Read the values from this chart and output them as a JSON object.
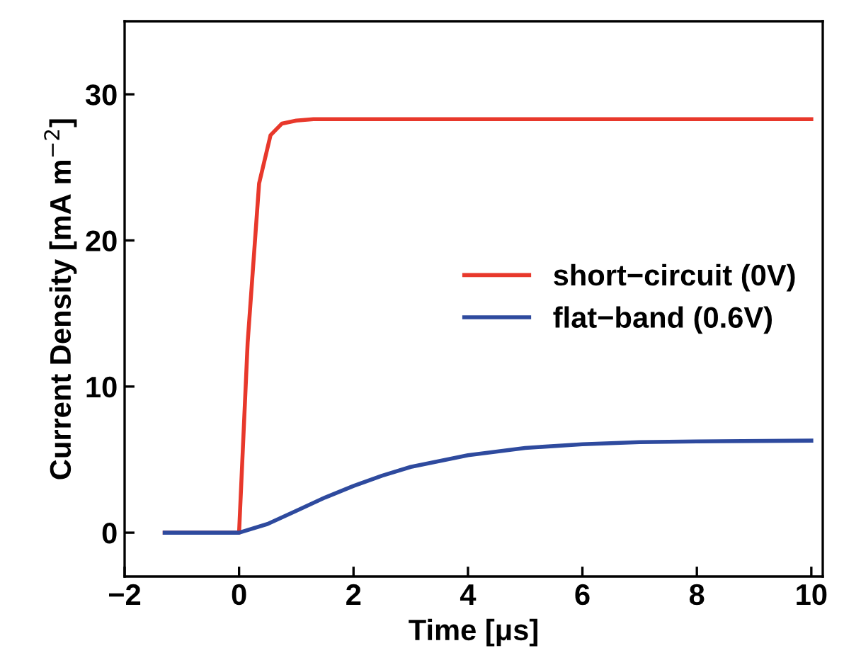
{
  "chart_data": {
    "type": "line",
    "xlabel": "Time [μs]",
    "ylabel": "Current Density [mA m$^{−2}$]",
    "xlim": [
      -2,
      10.2
    ],
    "ylim": [
      -3,
      35
    ],
    "xticks": [
      {
        "value": -2,
        "label": "−2"
      },
      0,
      2,
      4,
      6,
      8,
      10
    ],
    "yticks": [
      0,
      10,
      20,
      30
    ],
    "grid": false,
    "legend": "right",
    "marker": "none",
    "line_style": "solid",
    "series": [
      {
        "name": "short−circuit (0V)",
        "color": "#e8382b",
        "x": [
          -1.3,
          0,
          0.15,
          0.35,
          0.55,
          0.75,
          1.0,
          1.3,
          10
        ],
        "values": [
          0,
          0,
          13,
          23.9,
          27.2,
          28.0,
          28.2,
          28.3,
          28.3
        ]
      },
      {
        "name": "flat−band (0.6V)",
        "color": "#2e4a9e",
        "x": [
          -1.3,
          0,
          0.5,
          1,
          1.5,
          2,
          2.5,
          3,
          4,
          5,
          6,
          7,
          8,
          10
        ],
        "values": [
          0,
          0,
          0.6,
          1.5,
          2.4,
          3.2,
          3.9,
          4.5,
          5.3,
          5.8,
          6.05,
          6.2,
          6.25,
          6.3
        ]
      }
    ]
  }
}
